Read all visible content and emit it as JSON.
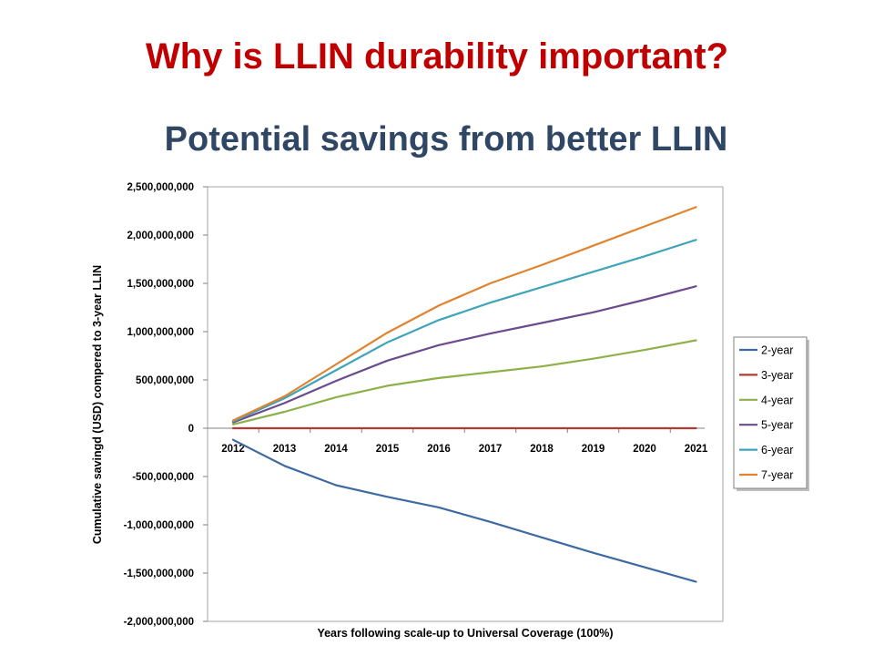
{
  "slide": {
    "title": "Why is LLIN durability important?",
    "subtitle": "Potential savings from better LLIN"
  },
  "chart_data": {
    "type": "line",
    "x": [
      "2012",
      "2013",
      "2014",
      "2015",
      "2016",
      "2017",
      "2018",
      "2019",
      "2020",
      "2021"
    ],
    "xlabel": "Years following scale-up to Universal Coverage (100%)",
    "ylabel": "Cumulative savingd (USD) compered to 3-year LLIN",
    "ylim": [
      -2000000000,
      2500000000
    ],
    "yticks": [
      2500000000,
      2000000000,
      1500000000,
      1000000000,
      500000000,
      0,
      -500000000,
      -1000000000,
      -1500000000,
      -2000000000
    ],
    "ytick_labels": [
      "2,500,000,000",
      "2,000,000,000",
      "1,500,000,000",
      "1,000,000,000",
      "500,000,000",
      "0",
      "-500,000,000",
      "-1,000,000,000",
      "-1,500,000,000",
      "-2,000,000,000"
    ],
    "grid": false,
    "legend_position": "right",
    "series": [
      {
        "name": "2-year",
        "color": "#3d6aa3",
        "values": [
          -120000000,
          -390000000,
          -590000000,
          -710000000,
          -820000000,
          -970000000,
          -1130000000,
          -1290000000,
          -1440000000,
          -1590000000
        ]
      },
      {
        "name": "3-year",
        "color": "#b23c35",
        "values": [
          0,
          0,
          0,
          0,
          0,
          0,
          0,
          0,
          0,
          0
        ]
      },
      {
        "name": "4-year",
        "color": "#8db048",
        "values": [
          40000000,
          170000000,
          320000000,
          440000000,
          520000000,
          580000000,
          640000000,
          720000000,
          810000000,
          910000000
        ]
      },
      {
        "name": "5-year",
        "color": "#6b4a8e",
        "values": [
          60000000,
          260000000,
          490000000,
          700000000,
          860000000,
          980000000,
          1090000000,
          1200000000,
          1330000000,
          1470000000
        ]
      },
      {
        "name": "6-year",
        "color": "#3fa3b9",
        "values": [
          70000000,
          310000000,
          600000000,
          890000000,
          1120000000,
          1300000000,
          1460000000,
          1620000000,
          1780000000,
          1950000000
        ]
      },
      {
        "name": "7-year",
        "color": "#e0832e",
        "values": [
          80000000,
          330000000,
          660000000,
          990000000,
          1270000000,
          1500000000,
          1690000000,
          1890000000,
          2090000000,
          2290000000
        ]
      }
    ]
  }
}
